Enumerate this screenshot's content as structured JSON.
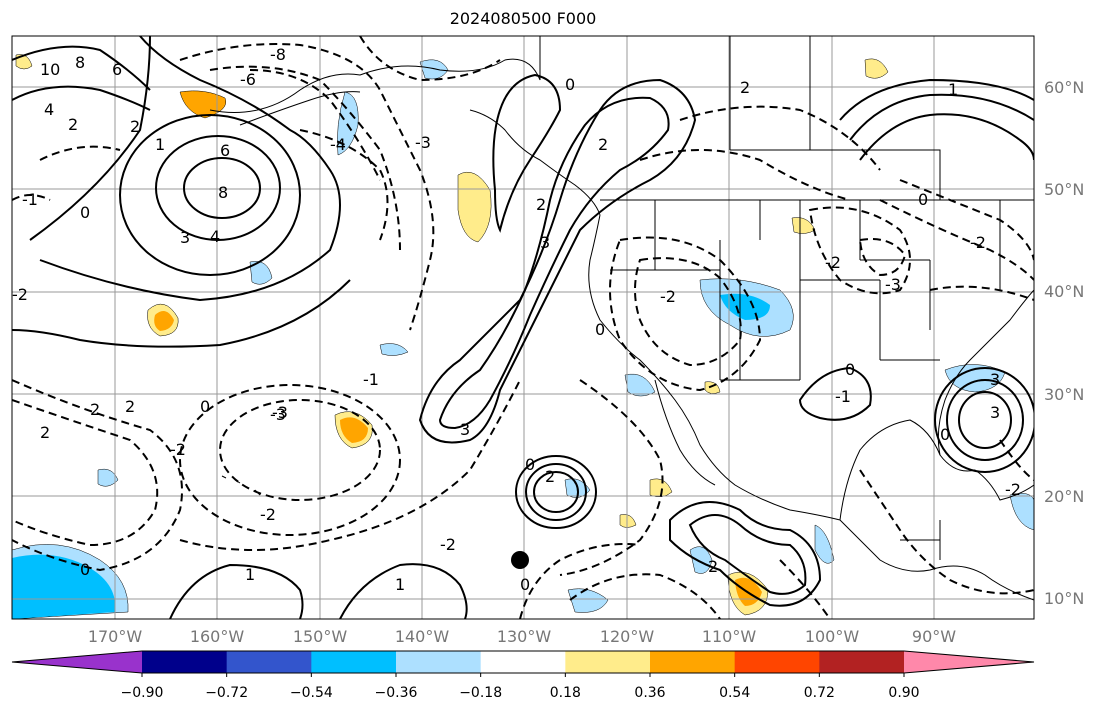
{
  "title": "2024080500 F000",
  "lat_labels": [
    "60°N",
    "50°N",
    "40°N",
    "30°N",
    "20°N",
    "10°N"
  ],
  "lon_labels": [
    "170°W",
    "160°W",
    "150°W",
    "140°W",
    "130°W",
    "120°W",
    "110°W",
    "100°W",
    "90°W"
  ],
  "colorbar": {
    "ticks": [
      "−0.90",
      "−0.72",
      "−0.54",
      "−0.36",
      "−0.18",
      "0.18",
      "0.36",
      "0.54",
      "0.72",
      "0.90"
    ],
    "colors": [
      "#9932CC",
      "#00008B",
      "#3355CC",
      "#00BFFF",
      "#ADE0FF",
      "#FFFFFF",
      "#FFEC8B",
      "#FFA500",
      "#FF4500",
      "#B22222",
      "#FF88AA"
    ]
  },
  "contour_labels": [
    "10",
    "8",
    "6",
    "4",
    "2",
    "8",
    "6",
    "4",
    "3",
    "2",
    "1",
    "0",
    "-1",
    "-2",
    "-3",
    "-8",
    "-6",
    "-4",
    "-3",
    "-2",
    "0",
    "2",
    "3",
    "2",
    "0",
    "-2",
    "-3",
    "-2",
    "0",
    "2",
    "3",
    "0",
    "-2",
    "2",
    "0",
    "1",
    "-3",
    "3",
    "0",
    "-2",
    "3",
    "2",
    "1",
    "0",
    "-1",
    "2",
    "-2",
    "2",
    "-2",
    "0",
    "-1",
    "1",
    "0",
    "2"
  ],
  "colors": {
    "land_line": "#000000",
    "grid": "#999999",
    "contour": "#000000"
  }
}
